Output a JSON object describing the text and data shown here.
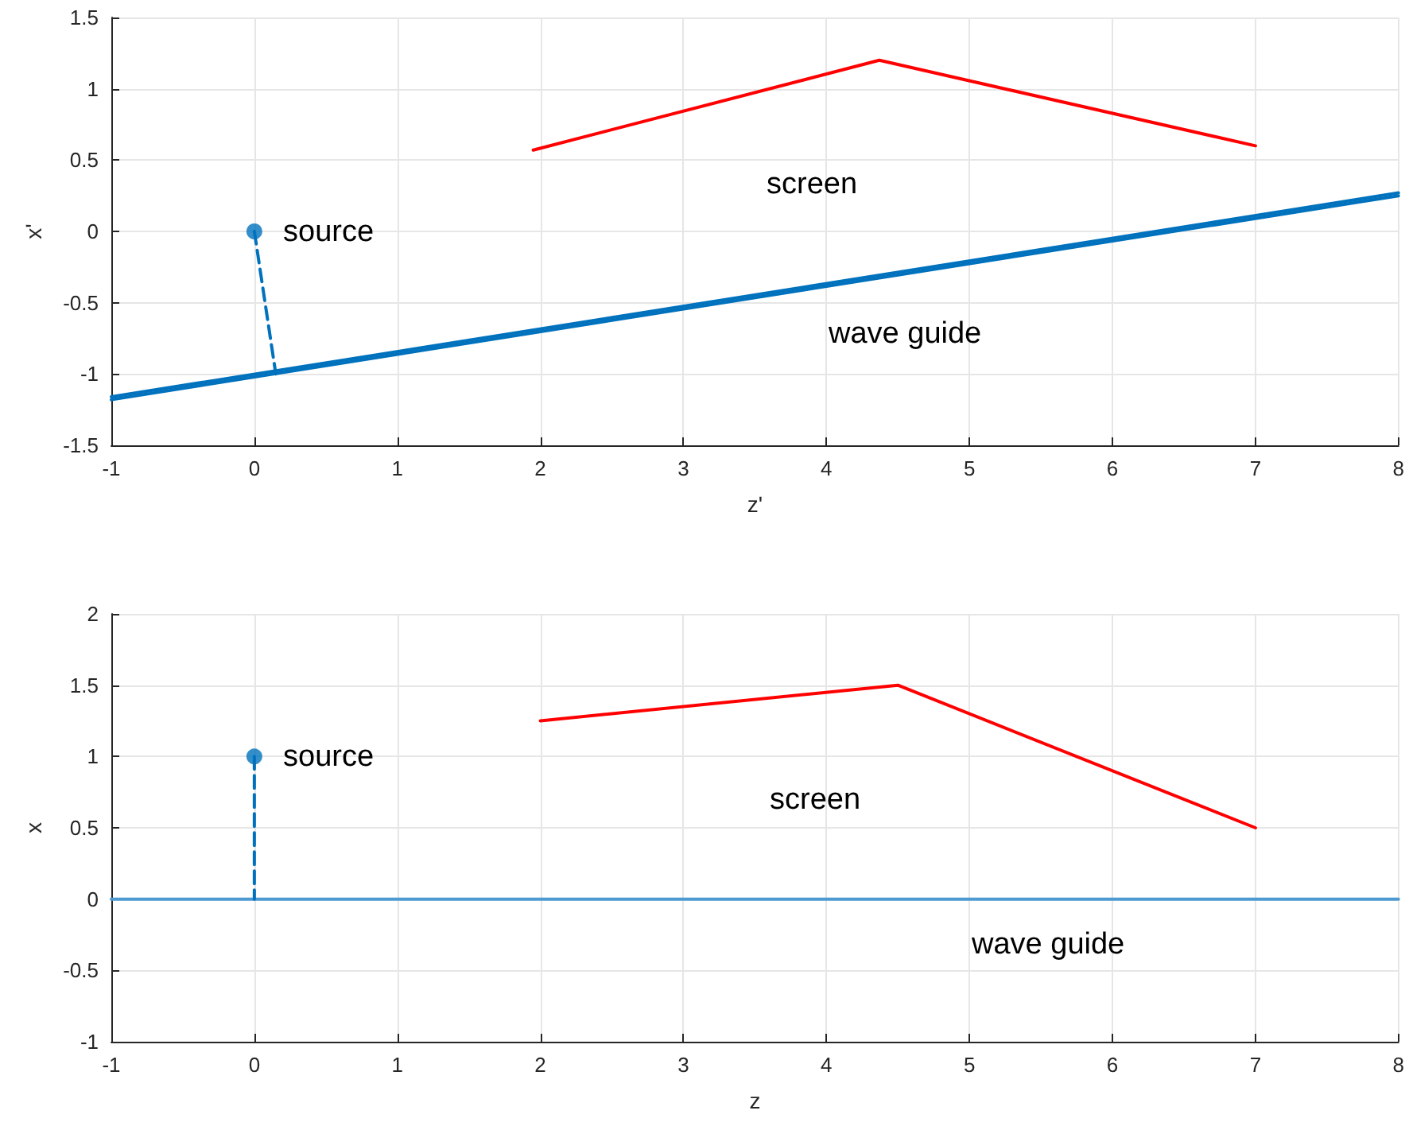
{
  "chart_data": [
    {
      "type": "line",
      "xlabel": "z'",
      "ylabel": "x'",
      "xlim": [
        -1,
        8
      ],
      "ylim": [
        -1.5,
        1.5
      ],
      "xticks": [
        -1,
        0,
        1,
        2,
        3,
        4,
        5,
        6,
        7,
        8
      ],
      "yticks": [
        -1.5,
        -1,
        -0.5,
        0,
        0.5,
        1,
        1.5
      ],
      "grid": true,
      "series": [
        {
          "color": "#ff0000",
          "x": [
            1.95,
            4.37,
            7
          ],
          "values": [
            0.57,
            1.2,
            0.6
          ]
        },
        {
          "color": "#0072bd",
          "x": [
            -1,
            8
          ],
          "values": [
            -1.16,
            0.27
          ]
        },
        {
          "color": "#0072bd",
          "x": [
            -1,
            8
          ],
          "values": [
            -1.18,
            0.25
          ]
        },
        {
          "color": "#0072bd",
          "x": [
            0,
            0.15
          ],
          "values": [
            0,
            -1.0
          ],
          "line_style": "dashed"
        },
        {
          "type": "scatter",
          "color": "#0072bd",
          "x": [
            0
          ],
          "values": [
            0
          ],
          "marker": "circle"
        }
      ],
      "annotations": [
        "source",
        "screen",
        "wave guide"
      ]
    },
    {
      "type": "line",
      "xlabel": "z",
      "ylabel": "x",
      "xlim": [
        -1,
        8
      ],
      "ylim": [
        -1,
        2
      ],
      "xticks": [
        -1,
        0,
        1,
        2,
        3,
        4,
        5,
        6,
        7,
        8
      ],
      "yticks": [
        -1,
        -0.5,
        0,
        0.5,
        1,
        1.5,
        2
      ],
      "grid": true,
      "series": [
        {
          "color": "#ff0000",
          "x": [
            2,
            4.5,
            7
          ],
          "values": [
            1.25,
            1.5,
            0.5
          ]
        },
        {
          "color": "#4d9ad3",
          "x": [
            -1,
            8
          ],
          "values": [
            0,
            0
          ]
        },
        {
          "color": "#0072bd",
          "x": [
            0,
            0
          ],
          "values": [
            1,
            0
          ],
          "line_style": "dashed"
        },
        {
          "type": "scatter",
          "color": "#0072bd",
          "x": [
            0
          ],
          "values": [
            1
          ],
          "marker": "circle"
        }
      ],
      "annotations": [
        "source",
        "screen",
        "wave guide"
      ]
    }
  ]
}
